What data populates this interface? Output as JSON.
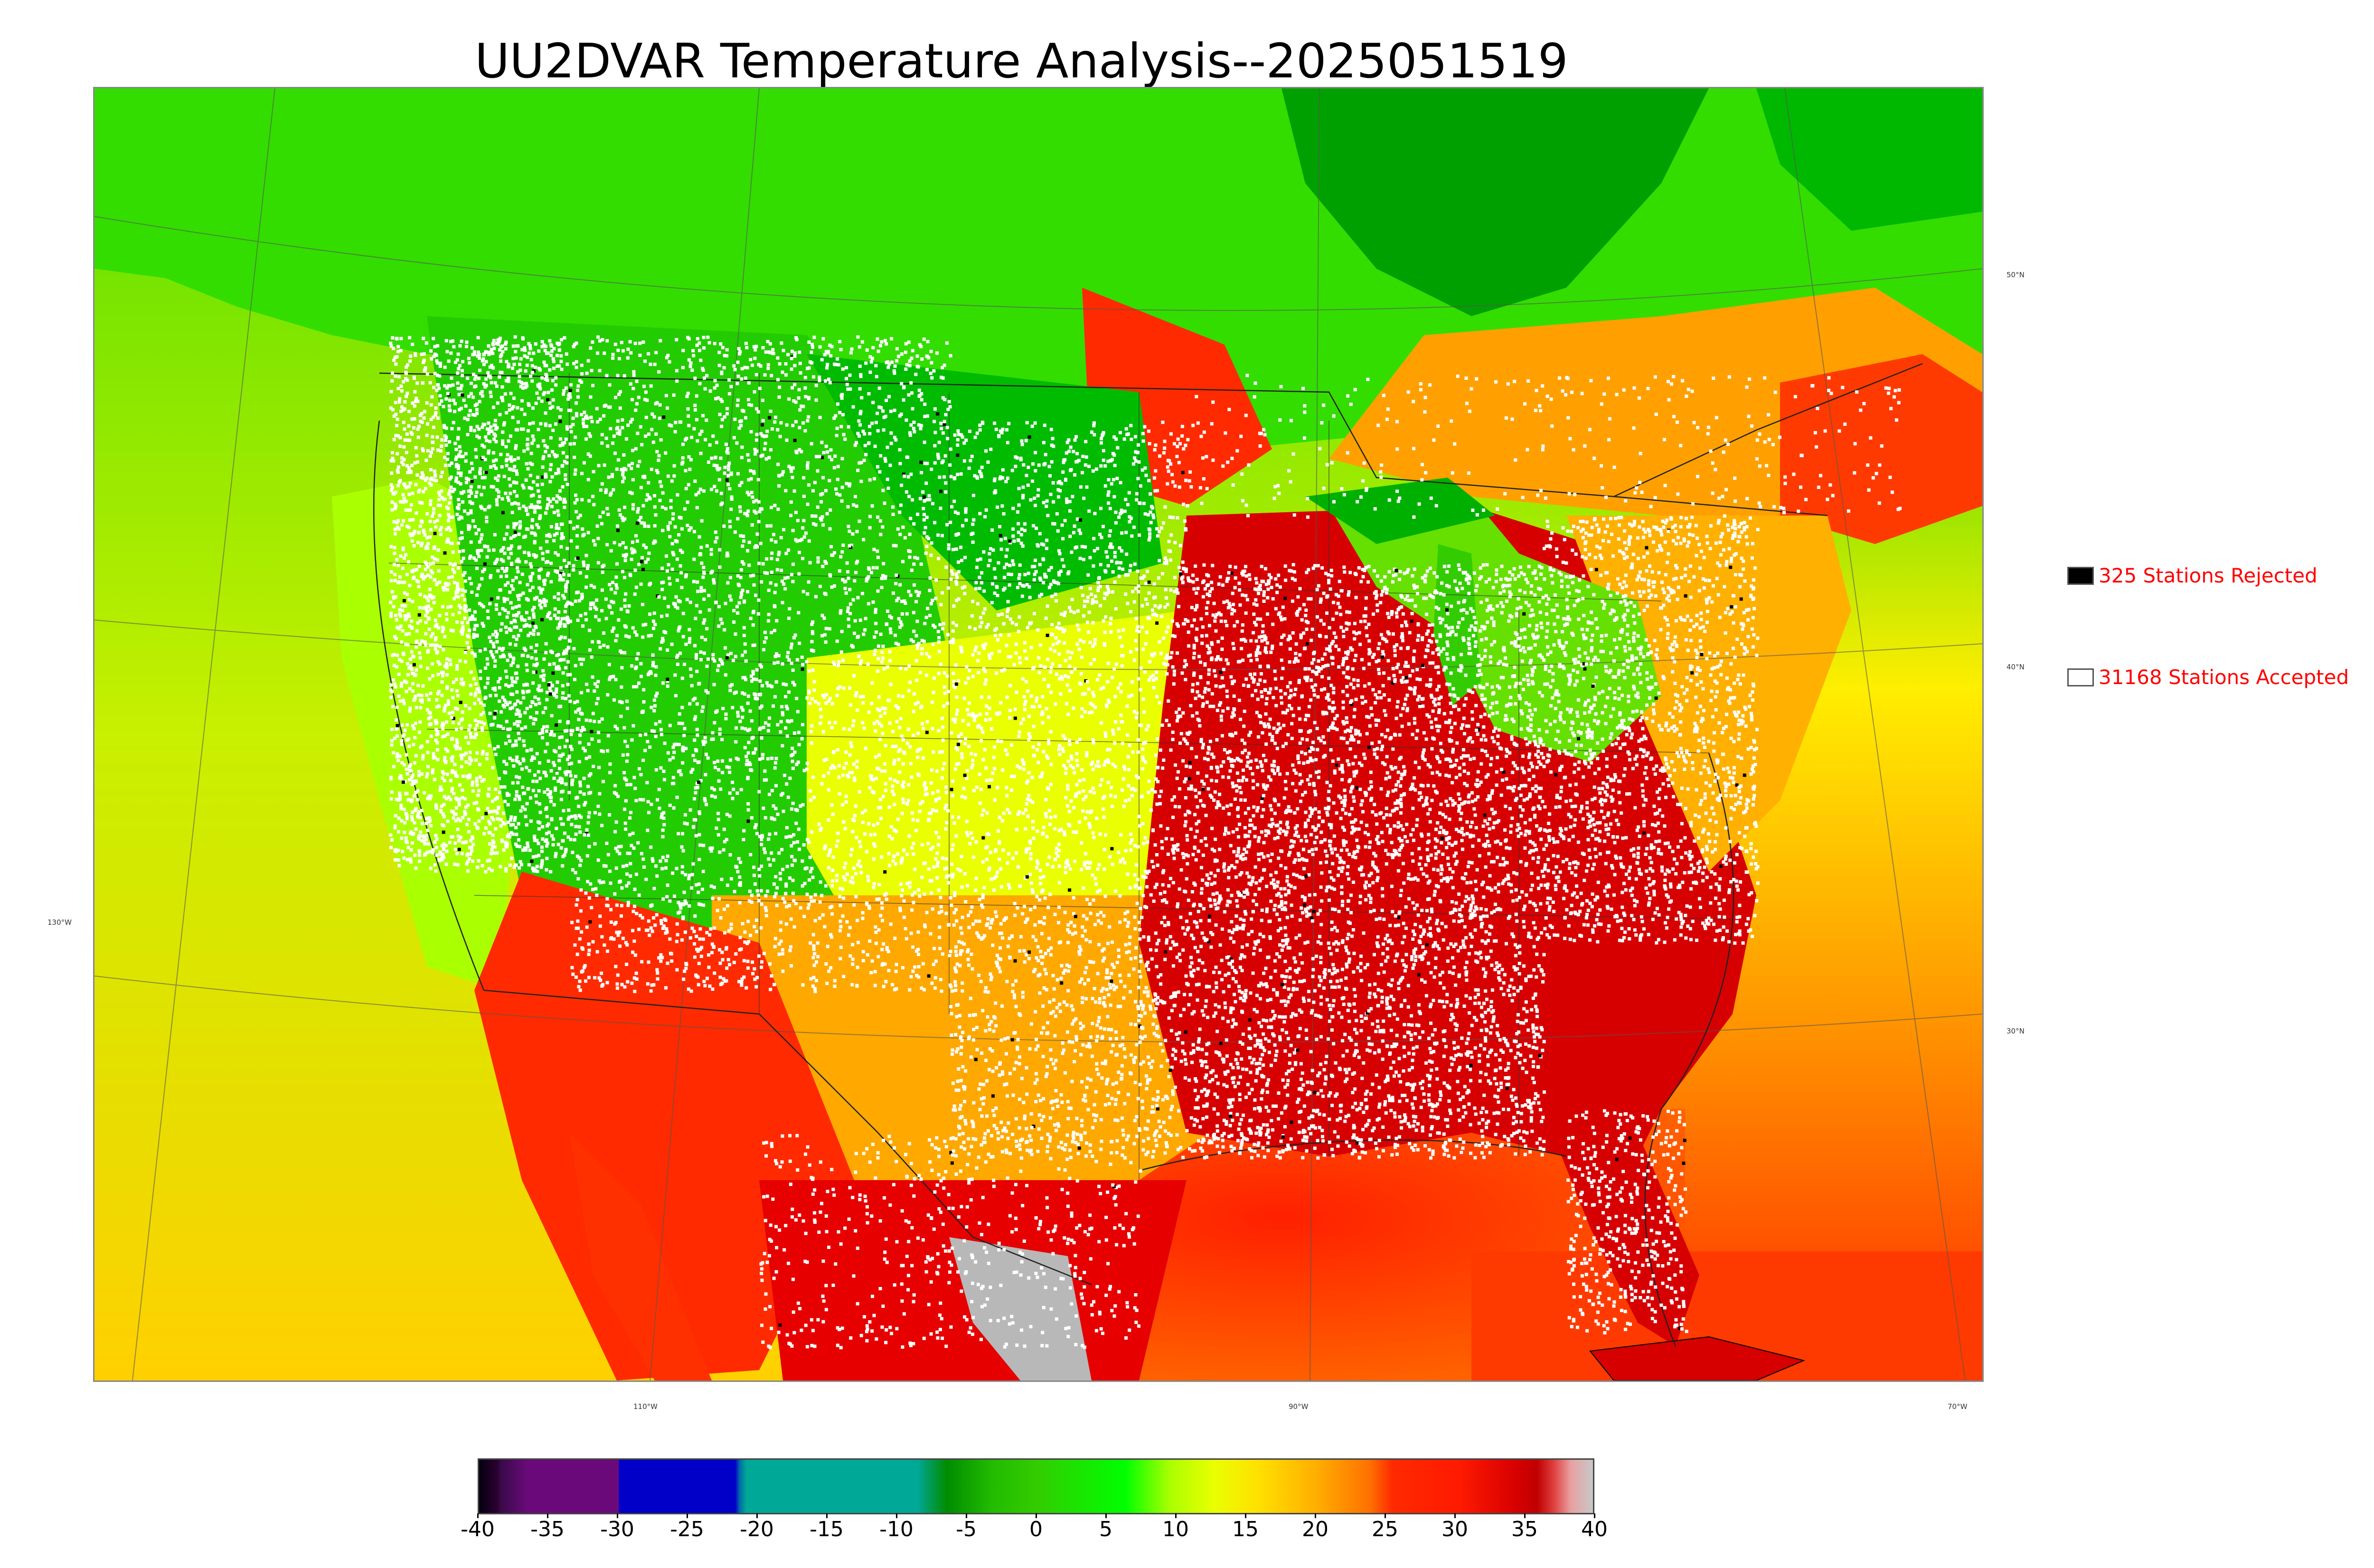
{
  "title": "UU2DVAR Temperature Analysis--2025051519",
  "legend": {
    "rejected": {
      "label": "325 Stations Rejected",
      "count": 325,
      "swatch_color": "#000000"
    },
    "accepted": {
      "label": "31168 Stations Accepted",
      "count": 31168,
      "swatch_color": "#ffffff"
    }
  },
  "lat_labels": [
    "50°N",
    "40°N",
    "30°N"
  ],
  "lon_labels": [
    "130°W",
    "110°W",
    "90°W",
    "70°W"
  ],
  "colorbar": {
    "ticks": [
      "-40",
      "-35",
      "-30",
      "-25",
      "-20",
      "-15",
      "-10",
      "-5",
      "0",
      "5",
      "10",
      "15",
      "20",
      "25",
      "30",
      "35",
      "40"
    ],
    "range": [
      -40,
      40
    ],
    "colors": {
      "-40": "#0a0010",
      "-38": "#3a0040",
      "-35": "#6a0a7a",
      "-30": "#0000c8",
      "-21": "#00a898",
      "-5": "#008c00",
      "0": "#33cc00",
      "10": "#00ff00",
      "15": "#eaff00",
      "20": "#ffd400",
      "25": "#ff9a00",
      "30": "#ff1a00",
      "35": "#d80000",
      "38": "#e8a0a0",
      "40": "#c8c8c8"
    }
  },
  "map_colors": {
    "cold_green": "#00a000",
    "green": "#33dd00",
    "lime": "#aaff00",
    "yellow": "#e8ef00",
    "orange": "#ffb000",
    "red": "#ff2a00",
    "dark_red": "#d60000",
    "gray": "#b8b8b8",
    "station_accepted": "#ffffff",
    "station_rejected": "#000000"
  }
}
